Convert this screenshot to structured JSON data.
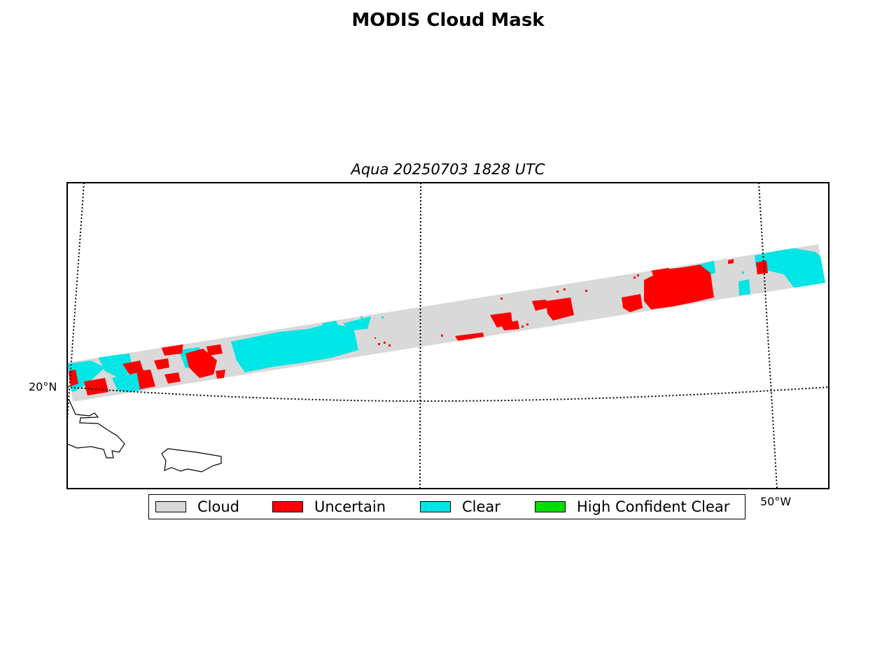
{
  "title": "MODIS Cloud Mask",
  "subtitle": "Aqua 20250703 1828 UTC",
  "map": {
    "lat_labels": [
      "20°N"
    ],
    "lon_labels": [
      "50°W"
    ],
    "colors": {
      "cloud": "#d9d9d9",
      "uncertain": "#ff0000",
      "clear": "#00e5e5",
      "high_confident_clear": "#00dd00",
      "gridline": "#000000",
      "coastline": "#000000"
    }
  },
  "legend": {
    "items": [
      {
        "label": "Cloud",
        "color": "#d9d9d9"
      },
      {
        "label": "Uncertain",
        "color": "#ff0000"
      },
      {
        "label": "Clear",
        "color": "#00e5e5"
      },
      {
        "label": "High Confident Clear",
        "color": "#00dd00"
      }
    ]
  }
}
